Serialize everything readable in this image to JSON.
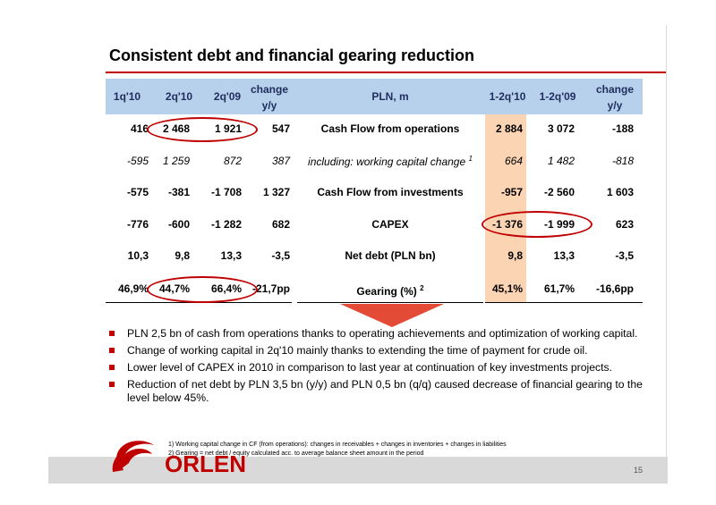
{
  "title": "Consistent debt and financial gearing reduction",
  "table": {
    "headers": {
      "c1": "1q'10",
      "c2": "2q'10",
      "c3": "2q'09",
      "c4_line1": "change",
      "c4_line2": "y/y",
      "label": "PLN, m",
      "c5": "1-2q'10",
      "c6": "1-2q'09",
      "c7_line1": "change",
      "c7_line2": "y/y"
    },
    "rows": [
      {
        "c1": "416",
        "c2": "2 468",
        "c3": "1 921",
        "c4": "547",
        "label": "Cash Flow from operations",
        "sup": "",
        "c5": "2 884",
        "c6": "3 072",
        "c7": "-188"
      },
      {
        "c1": "-595",
        "c2": "1 259",
        "c3": "872",
        "c4": "387",
        "label": "including: working capital change",
        "sup": "1",
        "c5": "664",
        "c6": "1 482",
        "c7": "-818"
      },
      {
        "c1": "-575",
        "c2": "-381",
        "c3": "-1 708",
        "c4": "1 327",
        "label": "Cash Flow from investments",
        "sup": "",
        "c5": "-957",
        "c6": "-2 560",
        "c7": "1 603"
      },
      {
        "c1": "-776",
        "c2": "-600",
        "c3": "-1 282",
        "c4": "682",
        "label": "CAPEX",
        "sup": "",
        "c5": "-1 376",
        "c6": "-1 999",
        "c7": "623"
      },
      {
        "c1": "10,3",
        "c2": "9,8",
        "c3": "13,3",
        "c4": "-3,5",
        "label": "Net debt (PLN bn)",
        "sup": "",
        "c5": "9,8",
        "c6": "13,3",
        "c7": "-3,5"
      },
      {
        "c1": "46,9%",
        "c2": "44,7%",
        "c3": "66,4%",
        "c4": "-21,7pp",
        "label": "Gearing (%)",
        "sup": "2",
        "c5": "45,1%",
        "c6": "61,7%",
        "c7": "-16,6pp"
      }
    ]
  },
  "bullets": [
    "PLN 2,5 bn of cash  from operations thanks to operating achievements and  optimization of working capital.",
    "Change of working capital in 2q'10 mainly thanks to extending the time of payment for crude oil.",
    "Lower level of CAPEX in 2010 in comparison to last year at continuation of key investments projects.",
    "Reduction of net debt by PLN 3,5 bn (y/y) and PLN 0,5 bn (q/q) caused decrease of financial gearing to the level below 45%."
  ],
  "footnotes": [
    "1) Working capital change in CF (from operations): changes in receivables + changes in inventories + changes in liabilities",
    "2) Gearing = net debt / equity calculated acc. to average balance sheet amount in the period"
  ],
  "logo_text": "ORLEN",
  "page_number": "15",
  "colors": {
    "accent": "#c00000",
    "header_bg": "#b7d0ec",
    "highlight_col": "#fbd4b4",
    "arrow": "#e34b36",
    "footer": "#d9d9d9"
  }
}
